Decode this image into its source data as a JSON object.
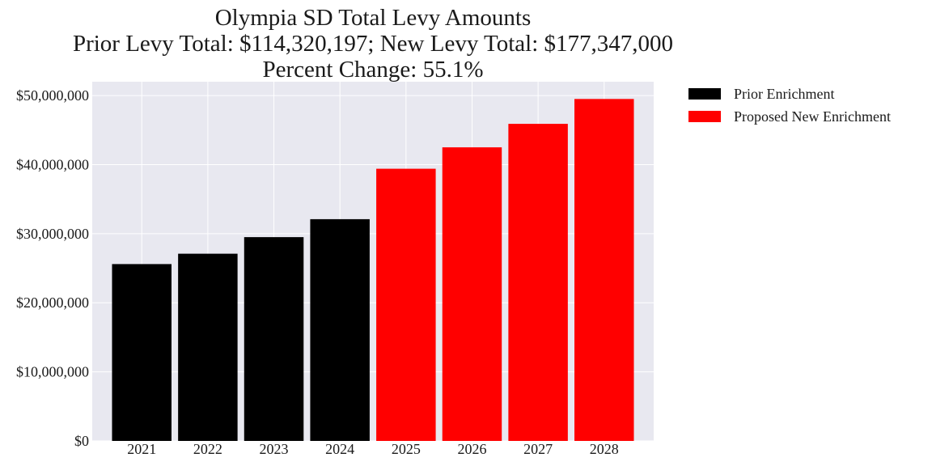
{
  "chart_data": {
    "type": "bar",
    "title_lines": [
      "Olympia SD Total Levy Amounts",
      "Prior Levy Total:  $114,320,197; New Levy Total: $177,347,000",
      "Percent Change: 55.1%"
    ],
    "categories": [
      "2021",
      "2022",
      "2023",
      "2024",
      "2025",
      "2026",
      "2027",
      "2028"
    ],
    "series": [
      {
        "name": "Prior Enrichment",
        "color": "#000000",
        "values": [
          25600000,
          27100000,
          29500000,
          32100000,
          null,
          null,
          null,
          null
        ]
      },
      {
        "name": "Proposed New Enrichment",
        "color": "#ff0000",
        "values": [
          null,
          null,
          null,
          null,
          39400000,
          42500000,
          45900000,
          49500000
        ]
      }
    ],
    "y_ticks": [
      0,
      10000000,
      20000000,
      30000000,
      40000000,
      50000000
    ],
    "y_tick_labels": [
      "$0",
      "$10,000,000",
      "$20,000,000",
      "$30,000,000",
      "$40,000,000",
      "$50,000,000"
    ],
    "ylim": [
      0,
      52000000
    ],
    "xlabel": "",
    "ylabel": "",
    "grid": true,
    "plot_background": "#e8e8f0",
    "legend_position": "outside-top-right"
  }
}
